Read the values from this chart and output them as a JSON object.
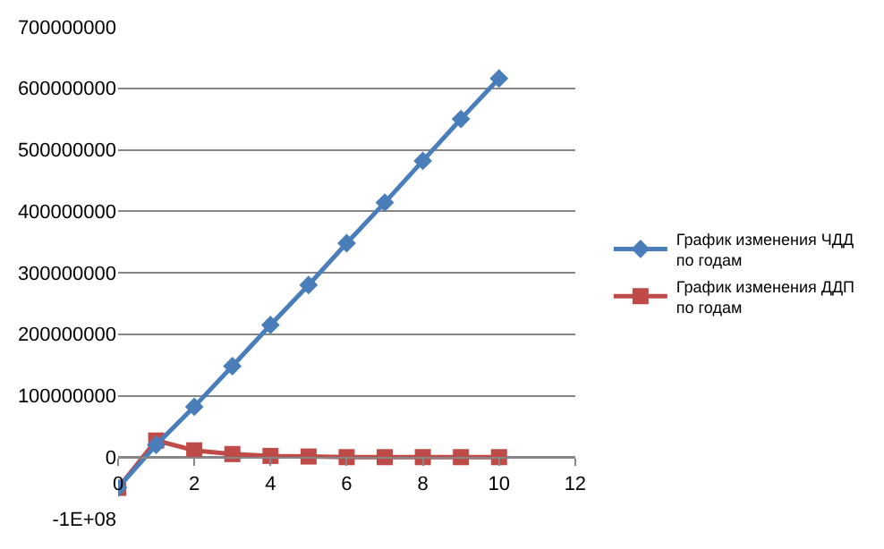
{
  "chart_data": {
    "type": "line",
    "x": [
      0,
      1,
      2,
      3,
      4,
      5,
      6,
      7,
      8,
      9,
      10
    ],
    "series": [
      {
        "name": "График изменения ЧДД по годам",
        "color": "#4a7ebb",
        "marker": "diamond",
        "values": [
          -50000000,
          20000000,
          82000000,
          148000000,
          215000000,
          280000000,
          348000000,
          414000000,
          482000000,
          550000000,
          616000000
        ]
      },
      {
        "name": "График изменения ДДП по годам",
        "color": "#be4b48",
        "marker": "square",
        "values": [
          -50000000,
          27000000,
          11000000,
          5000000,
          2000000,
          1000000,
          0,
          0,
          0,
          0,
          0
        ]
      }
    ],
    "xlim": [
      0,
      12
    ],
    "xticks": [
      0,
      2,
      4,
      6,
      8,
      10,
      12
    ],
    "ylim": [
      -100000000,
      700000000
    ],
    "yticks": [
      {
        "value": -100000000,
        "label": "-1E+08"
      },
      0,
      100000000,
      200000000,
      300000000,
      400000000,
      500000000,
      600000000,
      700000000
    ],
    "grid": "y",
    "legend": "right",
    "line_style": "solid"
  }
}
